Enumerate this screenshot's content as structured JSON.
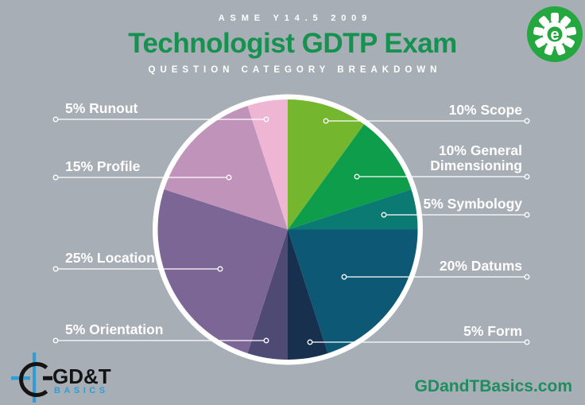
{
  "header": {
    "eyebrow": "ASME Y14.5 2009",
    "title": "Technologist GDTP Exam",
    "subtitle": "QUESTION CATEGORY BREAKDOWN"
  },
  "badge": {
    "icon": "gear-icon",
    "color": "#23a73e",
    "letter": "e"
  },
  "brand": {
    "logo_icon": "position-symbol-crosshair-icon",
    "logo_text": "GD&T",
    "logo_subtext": "BASICS",
    "website": "GDandTBasics.com"
  },
  "colors": {
    "background": "#a8aeb5",
    "title_green": "#17914f",
    "callout_white": "#ffffff",
    "logo_blue": "#2e9fd6",
    "logo_black": "#141414",
    "website_green": "#1e8e61",
    "pie_ring_white": "#ffffff"
  },
  "chart_data": {
    "type": "pie",
    "title": "Technologist GDTP Exam",
    "eyebrow": "ASME Y14.5 2009",
    "subtitle": "QUESTION CATEGORY BREAKDOWN",
    "start_angle": "12 o'clock",
    "direction": "clockwise",
    "legend_position": "callout-labels-around-pie",
    "slices": [
      {
        "label": "Scope",
        "percent": 10,
        "display": "10% Scope",
        "color": "#74b62e",
        "callout_side": "right"
      },
      {
        "label": "General Dimensioning",
        "percent": 10,
        "display": "10% General Dimensioning",
        "color": "#0d9d4b",
        "callout_side": "right"
      },
      {
        "label": "Symbology",
        "percent": 5,
        "display": "5% Symbology",
        "color": "#0b7a72",
        "callout_side": "right"
      },
      {
        "label": "Datums",
        "percent": 20,
        "display": "20% Datums",
        "color": "#0d5875",
        "callout_side": "right"
      },
      {
        "label": "Form",
        "percent": 5,
        "display": "5% Form",
        "color": "#16304e",
        "callout_side": "right"
      },
      {
        "label": "Orientation",
        "percent": 5,
        "display": "5% Orientation",
        "color": "#4e4a74",
        "callout_side": "left"
      },
      {
        "label": "Location",
        "percent": 25,
        "display": "25% Location",
        "color": "#7c6695",
        "callout_side": "left"
      },
      {
        "label": "Profile",
        "percent": 15,
        "display": "15% Profile",
        "color": "#c093bb",
        "callout_side": "left"
      },
      {
        "label": "Runout",
        "percent": 5,
        "display": "5% Runout",
        "color": "#eeb6d2",
        "callout_side": "left"
      }
    ]
  }
}
